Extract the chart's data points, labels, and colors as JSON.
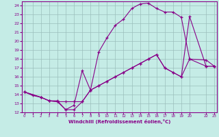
{
  "xlabel": "Windchill (Refroidissement éolien,°C)",
  "bg_color": "#c5ece6",
  "grid_color": "#9bbfbb",
  "line_color": "#880088",
  "xlim": [
    -0.3,
    23.3
  ],
  "ylim": [
    12.0,
    24.5
  ],
  "xticks": [
    0,
    1,
    2,
    3,
    4,
    5,
    6,
    7,
    8,
    9,
    10,
    11,
    12,
    13,
    14,
    15,
    16,
    17,
    18,
    19,
    20,
    22,
    23
  ],
  "yticks": [
    12,
    13,
    14,
    15,
    16,
    17,
    18,
    19,
    20,
    21,
    22,
    23,
    24
  ],
  "line1_x": [
    0,
    1,
    2,
    3,
    4,
    5,
    6,
    7,
    8,
    9,
    10,
    11,
    12,
    13,
    14,
    15,
    16,
    17,
    18,
    19,
    20,
    22,
    23
  ],
  "line1_y": [
    14.3,
    13.9,
    13.7,
    13.3,
    13.3,
    12.3,
    12.8,
    16.7,
    14.5,
    18.8,
    20.4,
    21.8,
    22.5,
    23.7,
    24.2,
    24.3,
    23.7,
    23.3,
    23.3,
    22.7,
    18.0,
    17.9,
    17.2
  ],
  "line2_x": [
    0,
    2,
    3,
    4,
    5,
    6,
    7,
    8,
    9,
    10,
    11,
    12,
    13,
    14,
    15,
    16,
    17,
    18,
    19,
    20,
    22,
    23
  ],
  "line2_y": [
    14.3,
    13.7,
    13.3,
    13.2,
    13.2,
    13.2,
    13.2,
    14.5,
    15.0,
    15.5,
    16.0,
    16.5,
    17.0,
    17.5,
    18.0,
    18.5,
    17.0,
    16.5,
    16.0,
    22.8,
    17.2,
    17.2
  ],
  "line3_x": [
    0,
    2,
    3,
    4,
    5,
    6,
    7,
    8,
    9,
    10,
    11,
    12,
    13,
    14,
    15,
    16,
    17,
    18,
    19,
    20,
    22,
    23
  ],
  "line3_y": [
    14.3,
    13.7,
    13.3,
    13.2,
    12.3,
    12.3,
    13.2,
    14.5,
    15.0,
    15.5,
    16.0,
    16.5,
    17.0,
    17.5,
    18.0,
    18.5,
    17.0,
    16.5,
    16.0,
    18.0,
    17.2,
    17.2
  ]
}
